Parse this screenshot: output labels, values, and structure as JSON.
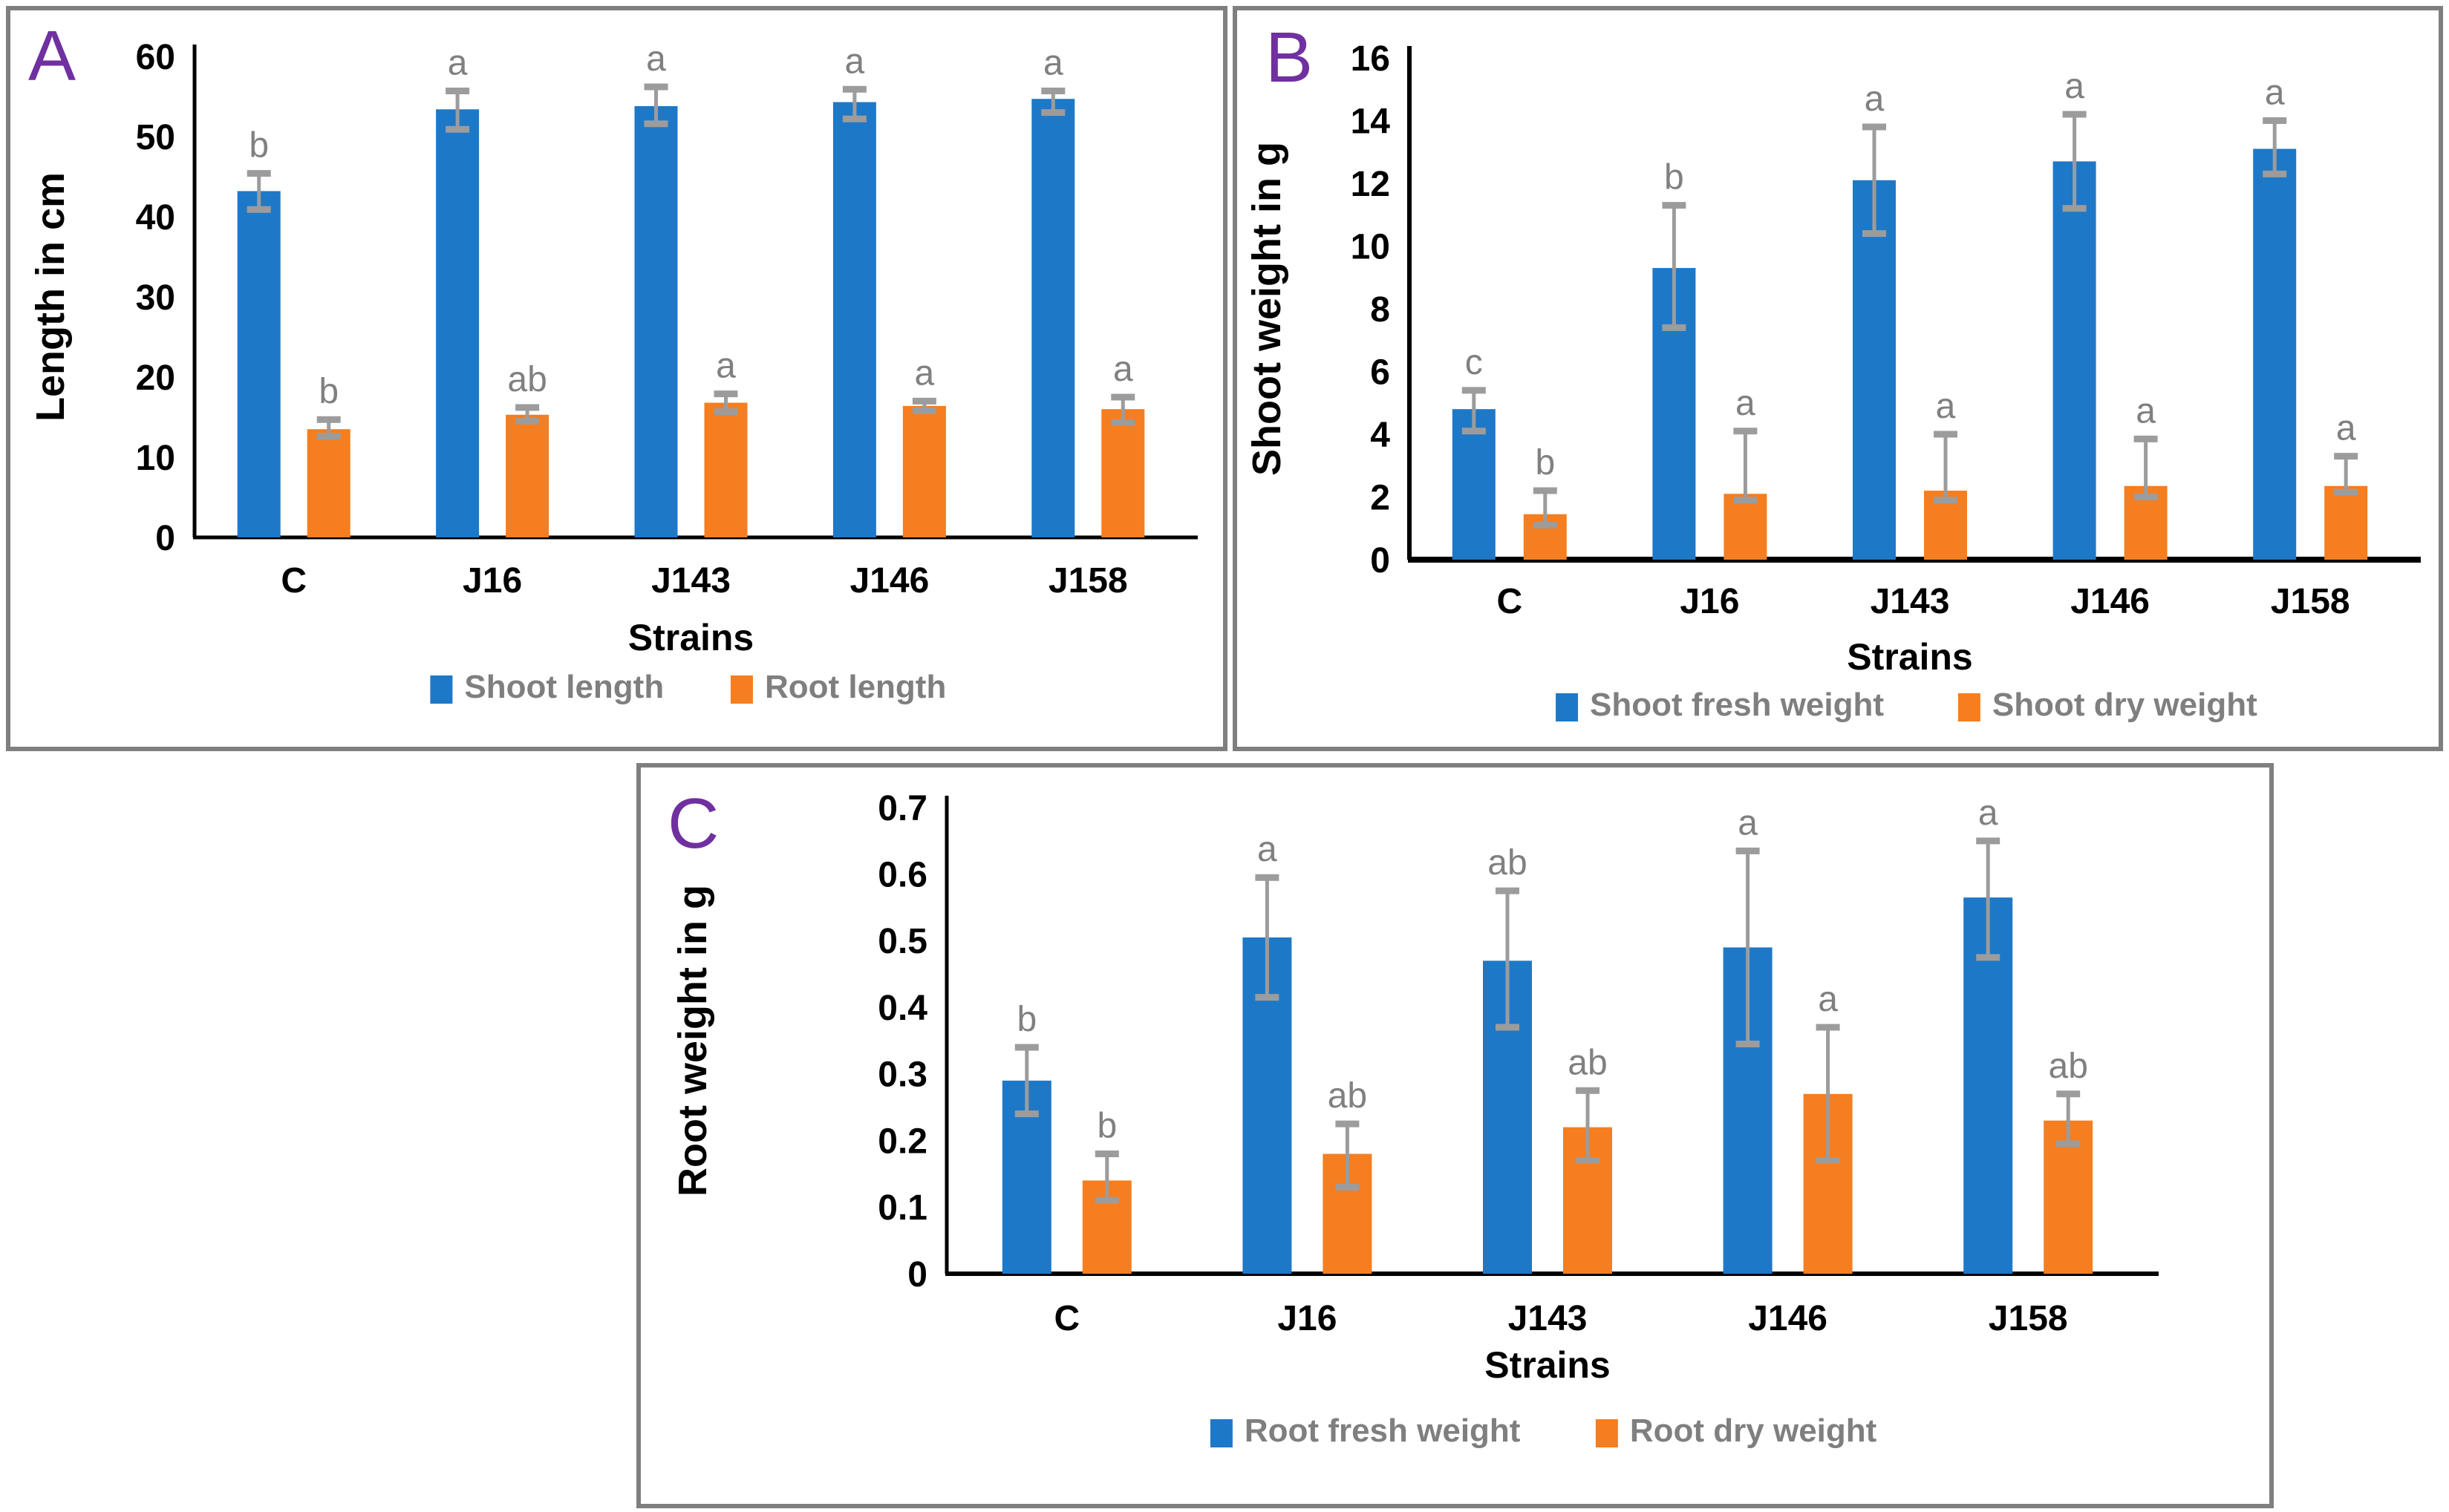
{
  "figure": {
    "panel_letters": [
      "A",
      "B",
      "C"
    ],
    "colors": {
      "series_blue": "#1E78C8",
      "series_orange": "#F57E20",
      "error_bar_gray": "#9c9c9c",
      "sig_letter_gray": "#808080",
      "legend_text_gray": "#7f7f7f",
      "axis_text_black": "#000000",
      "panel_letter_purple": "#7030A0",
      "panel_border_gray": "#7f7f7f"
    }
  },
  "chart_data": [
    {
      "panel": "A",
      "type": "bar",
      "title": "",
      "xlabel": "Strains",
      "ylabel": "Length in cm",
      "ylim": [
        0,
        60
      ],
      "ytick_labels": [
        "0",
        "10",
        "20",
        "30",
        "40",
        "50",
        "60"
      ],
      "grid": false,
      "legend_position": "bottom",
      "categories": [
        "C",
        "J16",
        "J143",
        "J146",
        "J158"
      ],
      "series": [
        {
          "name": "Shoot length",
          "color_key": "series_blue",
          "values": [
            43.2,
            53.4,
            53.8,
            54.3,
            54.7
          ],
          "err_low": [
            40.9,
            50.9,
            51.6,
            52.2,
            53.0
          ],
          "err_high": [
            45.4,
            55.7,
            56.2,
            55.9,
            55.7
          ],
          "letters": [
            "b",
            "a",
            "a",
            "a",
            "a"
          ]
        },
        {
          "name": "Root length",
          "color_key": "series_orange",
          "values": [
            13.5,
            15.3,
            16.8,
            16.4,
            16.0
          ],
          "err_low": [
            12.6,
            14.5,
            15.7,
            15.8,
            14.3
          ],
          "err_high": [
            14.7,
            16.2,
            17.9,
            17.0,
            17.5
          ],
          "letters": [
            "b",
            "ab",
            "a",
            "a",
            "a"
          ]
        }
      ]
    },
    {
      "panel": "B",
      "type": "bar",
      "title": "",
      "xlabel": "Strains",
      "ylabel": "Shoot weight in g",
      "ylim": [
        0,
        16
      ],
      "ytick_labels": [
        "0",
        "2",
        "4",
        "6",
        "8",
        "10",
        "12",
        "14",
        "16"
      ],
      "grid": false,
      "legend_position": "bottom",
      "categories": [
        "C",
        "J16",
        "J143",
        "J146",
        "J158"
      ],
      "series": [
        {
          "name": "Shoot fresh weight",
          "color_key": "series_blue",
          "values": [
            4.8,
            9.3,
            12.1,
            12.7,
            13.1
          ],
          "err_low": [
            4.1,
            7.4,
            10.4,
            11.2,
            12.3
          ],
          "err_high": [
            5.4,
            11.3,
            13.8,
            14.2,
            14.0
          ],
          "letters": [
            "c",
            "b",
            "a",
            "a",
            "a"
          ]
        },
        {
          "name": "Shoot dry weight",
          "color_key": "series_orange",
          "values": [
            1.45,
            2.1,
            2.2,
            2.35,
            2.35
          ],
          "err_low": [
            1.1,
            1.9,
            1.9,
            2.0,
            2.15
          ],
          "err_high": [
            2.2,
            4.1,
            4.0,
            3.85,
            3.3
          ],
          "letters": [
            "b",
            "a",
            "a",
            "a",
            "a"
          ]
        }
      ]
    },
    {
      "panel": "C",
      "type": "bar",
      "title": "",
      "xlabel": "Strains",
      "ylabel": "Root weight in g",
      "ylim": [
        0,
        0.7
      ],
      "ytick_labels": [
        "0",
        "0.1",
        "0.2",
        "0.3",
        "0.4",
        "0.5",
        "0.6",
        "0.7"
      ],
      "grid": false,
      "legend_position": "bottom",
      "categories": [
        "C",
        "J16",
        "J143",
        "J146",
        "J158"
      ],
      "series": [
        {
          "name": "Root fresh weight",
          "color_key": "series_blue",
          "values": [
            0.29,
            0.505,
            0.47,
            0.49,
            0.565
          ],
          "err_low": [
            0.24,
            0.415,
            0.37,
            0.345,
            0.475
          ],
          "err_high": [
            0.34,
            0.595,
            0.575,
            0.635,
            0.65
          ],
          "letters": [
            "b",
            "a",
            "ab",
            "a",
            "a"
          ]
        },
        {
          "name": "Root dry weight",
          "color_key": "series_orange",
          "values": [
            0.14,
            0.18,
            0.22,
            0.27,
            0.23
          ],
          "err_low": [
            0.11,
            0.13,
            0.17,
            0.17,
            0.195
          ],
          "err_high": [
            0.18,
            0.225,
            0.275,
            0.37,
            0.27
          ],
          "letters": [
            "b",
            "ab",
            "ab",
            "a",
            "ab"
          ]
        }
      ]
    }
  ]
}
